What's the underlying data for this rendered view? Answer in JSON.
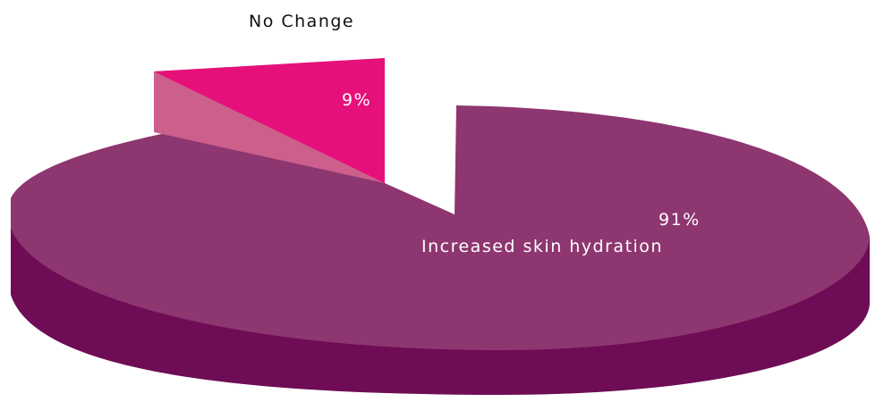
{
  "chart_data": {
    "type": "pie",
    "title": "",
    "style": "3d-exploded",
    "slices": [
      {
        "name": "Increased skin hydration",
        "value": 91,
        "value_label": "91%",
        "color": "#8e3670"
      },
      {
        "name": "No Change",
        "value": 9,
        "value_label": "9%",
        "color": "#e6107b"
      }
    ],
    "legend": "none"
  },
  "colors": {
    "main_top": "#8e3670",
    "main_side": "#6e0d55",
    "small_top": "#e6107b",
    "small_side": "#cc5f8c"
  }
}
